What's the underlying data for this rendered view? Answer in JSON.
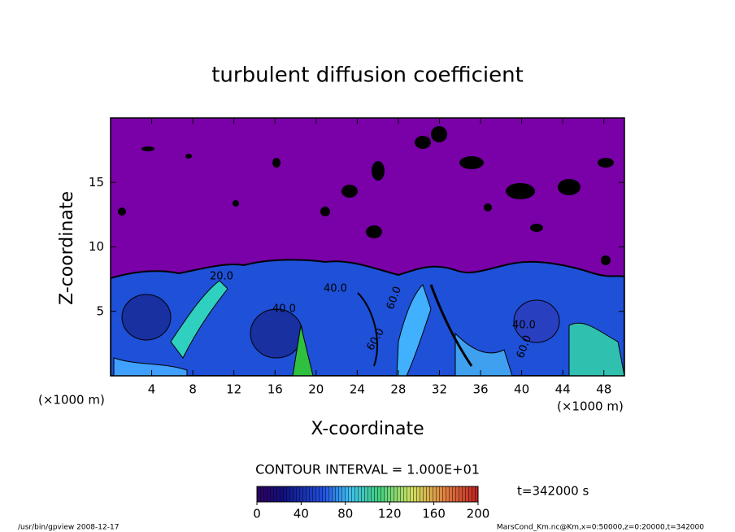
{
  "chart_data": {
    "type": "contour",
    "title": "turbulent diffusion coefficient",
    "x_label": "X-coordinate",
    "y_label": "Z-coordinate",
    "x_unit": "(×1000 m)",
    "y_unit": "(×1000 m)",
    "xlim": [
      0,
      50
    ],
    "xticks": [
      4,
      8,
      12,
      16,
      20,
      24,
      28,
      32,
      36,
      40,
      44,
      48
    ],
    "ylim": [
      0,
      20
    ],
    "yticks": [
      5,
      10,
      15
    ],
    "contour_labels": [
      "20.0",
      "40.0",
      "40.0",
      "60.0",
      "60.0",
      "40.0",
      "60.0"
    ],
    "contour_interval": "CONTOUR INTERVAL = 1.000E+01",
    "colorbar": {
      "lim": [
        0,
        200
      ],
      "ticks": [
        0,
        40,
        80,
        120,
        160,
        200
      ]
    },
    "time_label": "t=342000 s",
    "footer_left": "/usr/bin/gpview   2008-12-17",
    "footer_right": "MarsCond_Km.nc@Km,x=0:50000,z=0:20000,t=342000"
  }
}
